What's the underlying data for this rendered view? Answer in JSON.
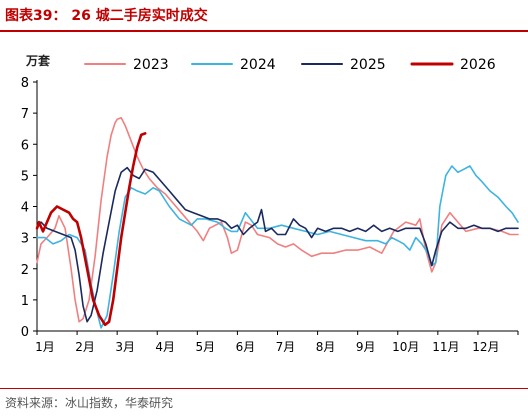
{
  "figure": {
    "title": "图表39：  26 城二手房实时成交",
    "source": "资料来源：冰山指数，华泰研究",
    "title_color": "#c00000"
  },
  "chart_data": {
    "type": "line",
    "ylabel": "万套",
    "ylim": [
      0,
      8
    ],
    "yticks": [
      0,
      1,
      2,
      3,
      4,
      5,
      6,
      7,
      8
    ],
    "xlim": [
      0,
      12
    ],
    "xticks": [
      "1月",
      "2月",
      "3月",
      "4月",
      "5月",
      "6月",
      "7月",
      "8月",
      "9月",
      "10月",
      "11月",
      "12月"
    ],
    "legend": "top",
    "grid": false,
    "series": [
      {
        "name": "2023",
        "color": "#f08080",
        "width": 1.6,
        "points": [
          [
            0,
            2.2
          ],
          [
            0.1,
            2.8
          ],
          [
            0.25,
            3.0
          ],
          [
            0.45,
            3.3
          ],
          [
            0.55,
            3.7
          ],
          [
            0.7,
            3.3
          ],
          [
            0.85,
            2.0
          ],
          [
            0.95,
            1.0
          ],
          [
            1.05,
            0.3
          ],
          [
            1.15,
            0.4
          ],
          [
            1.3,
            1.0
          ],
          [
            1.45,
            2.4
          ],
          [
            1.6,
            4.2
          ],
          [
            1.75,
            5.6
          ],
          [
            1.85,
            6.3
          ],
          [
            1.95,
            6.7
          ],
          [
            2.0,
            6.8
          ],
          [
            2.1,
            6.85
          ],
          [
            2.2,
            6.6
          ],
          [
            2.35,
            6.1
          ],
          [
            2.5,
            5.6
          ],
          [
            2.65,
            5.2
          ],
          [
            2.8,
            4.9
          ],
          [
            3.0,
            4.6
          ],
          [
            3.2,
            4.4
          ],
          [
            3.4,
            4.1
          ],
          [
            3.6,
            3.8
          ],
          [
            3.8,
            3.5
          ],
          [
            4.0,
            3.2
          ],
          [
            4.15,
            2.9
          ],
          [
            4.3,
            3.3
          ],
          [
            4.6,
            3.5
          ],
          [
            4.75,
            3.0
          ],
          [
            4.85,
            2.5
          ],
          [
            5.0,
            2.6
          ],
          [
            5.2,
            3.5
          ],
          [
            5.35,
            3.4
          ],
          [
            5.5,
            3.1
          ],
          [
            5.8,
            3.0
          ],
          [
            6.0,
            2.8
          ],
          [
            6.2,
            2.7
          ],
          [
            6.4,
            2.8
          ],
          [
            6.6,
            2.6
          ],
          [
            6.85,
            2.4
          ],
          [
            7.1,
            2.5
          ],
          [
            7.4,
            2.5
          ],
          [
            7.7,
            2.6
          ],
          [
            8.0,
            2.6
          ],
          [
            8.3,
            2.7
          ],
          [
            8.6,
            2.5
          ],
          [
            8.9,
            3.2
          ],
          [
            9.2,
            3.5
          ],
          [
            9.45,
            3.4
          ],
          [
            9.55,
            3.6
          ],
          [
            9.7,
            2.6
          ],
          [
            9.85,
            1.9
          ],
          [
            9.95,
            2.2
          ],
          [
            10.1,
            3.4
          ],
          [
            10.3,
            3.8
          ],
          [
            10.5,
            3.5
          ],
          [
            10.7,
            3.2
          ],
          [
            11.0,
            3.3
          ],
          [
            11.3,
            3.3
          ],
          [
            11.6,
            3.2
          ],
          [
            11.8,
            3.1
          ],
          [
            12.0,
            3.1
          ]
        ]
      },
      {
        "name": "2024",
        "color": "#3fb3e0",
        "width": 1.6,
        "points": [
          [
            0,
            3.0
          ],
          [
            0.2,
            3.0
          ],
          [
            0.4,
            2.8
          ],
          [
            0.6,
            2.9
          ],
          [
            0.8,
            3.1
          ],
          [
            1.0,
            3.0
          ],
          [
            1.2,
            2.6
          ],
          [
            1.35,
            1.5
          ],
          [
            1.5,
            0.6
          ],
          [
            1.6,
            0.1
          ],
          [
            1.75,
            0.5
          ],
          [
            1.9,
            1.8
          ],
          [
            2.05,
            3.2
          ],
          [
            2.2,
            4.3
          ],
          [
            2.35,
            4.6
          ],
          [
            2.5,
            4.5
          ],
          [
            2.7,
            4.4
          ],
          [
            2.9,
            4.6
          ],
          [
            3.05,
            4.5
          ],
          [
            3.3,
            4.0
          ],
          [
            3.55,
            3.6
          ],
          [
            3.7,
            3.5
          ],
          [
            3.85,
            3.4
          ],
          [
            4.0,
            3.6
          ],
          [
            4.2,
            3.6
          ],
          [
            4.5,
            3.5
          ],
          [
            4.7,
            3.3
          ],
          [
            4.85,
            3.2
          ],
          [
            5.0,
            3.2
          ],
          [
            5.2,
            3.8
          ],
          [
            5.5,
            3.3
          ],
          [
            5.8,
            3.3
          ],
          [
            6.1,
            3.4
          ],
          [
            6.4,
            3.3
          ],
          [
            6.7,
            3.2
          ],
          [
            7.0,
            3.1
          ],
          [
            7.3,
            3.2
          ],
          [
            7.6,
            3.1
          ],
          [
            7.9,
            3.0
          ],
          [
            8.2,
            2.9
          ],
          [
            8.5,
            2.9
          ],
          [
            8.7,
            2.8
          ],
          [
            8.85,
            3.0
          ],
          [
            9.0,
            2.9
          ],
          [
            9.15,
            2.8
          ],
          [
            9.3,
            2.6
          ],
          [
            9.45,
            3.0
          ],
          [
            9.6,
            2.8
          ],
          [
            9.75,
            2.5
          ],
          [
            9.85,
            2.1
          ],
          [
            9.95,
            2.2
          ],
          [
            10.05,
            4.0
          ],
          [
            10.2,
            5.0
          ],
          [
            10.35,
            5.3
          ],
          [
            10.5,
            5.1
          ],
          [
            10.65,
            5.2
          ],
          [
            10.8,
            5.3
          ],
          [
            10.95,
            5.0
          ],
          [
            11.1,
            4.8
          ],
          [
            11.3,
            4.5
          ],
          [
            11.5,
            4.3
          ],
          [
            11.7,
            4.0
          ],
          [
            11.85,
            3.8
          ],
          [
            12.0,
            3.5
          ]
        ]
      },
      {
        "name": "2025",
        "color": "#1a2a5e",
        "width": 1.6,
        "points": [
          [
            0,
            3.3
          ],
          [
            0.1,
            3.5
          ],
          [
            0.25,
            3.3
          ],
          [
            0.45,
            3.2
          ],
          [
            0.65,
            3.1
          ],
          [
            0.85,
            3.0
          ],
          [
            0.95,
            2.6
          ],
          [
            1.05,
            1.8
          ],
          [
            1.15,
            0.8
          ],
          [
            1.25,
            0.3
          ],
          [
            1.35,
            0.5
          ],
          [
            1.5,
            1.3
          ],
          [
            1.65,
            2.5
          ],
          [
            1.8,
            3.5
          ],
          [
            1.95,
            4.5
          ],
          [
            2.1,
            5.1
          ],
          [
            2.25,
            5.25
          ],
          [
            2.4,
            5.0
          ],
          [
            2.55,
            4.9
          ],
          [
            2.7,
            5.2
          ],
          [
            2.9,
            5.1
          ],
          [
            3.1,
            4.8
          ],
          [
            3.3,
            4.5
          ],
          [
            3.5,
            4.2
          ],
          [
            3.7,
            3.9
          ],
          [
            3.9,
            3.8
          ],
          [
            4.1,
            3.7
          ],
          [
            4.3,
            3.6
          ],
          [
            4.5,
            3.6
          ],
          [
            4.7,
            3.5
          ],
          [
            4.85,
            3.3
          ],
          [
            5.0,
            3.4
          ],
          [
            5.15,
            3.1
          ],
          [
            5.3,
            3.3
          ],
          [
            5.5,
            3.5
          ],
          [
            5.6,
            3.9
          ],
          [
            5.7,
            3.2
          ],
          [
            5.85,
            3.3
          ],
          [
            6.0,
            3.1
          ],
          [
            6.2,
            3.1
          ],
          [
            6.4,
            3.6
          ],
          [
            6.55,
            3.4
          ],
          [
            6.7,
            3.3
          ],
          [
            6.85,
            3.0
          ],
          [
            7.0,
            3.3
          ],
          [
            7.2,
            3.2
          ],
          [
            7.4,
            3.3
          ],
          [
            7.6,
            3.3
          ],
          [
            7.8,
            3.2
          ],
          [
            8.0,
            3.3
          ],
          [
            8.2,
            3.2
          ],
          [
            8.4,
            3.4
          ],
          [
            8.6,
            3.2
          ],
          [
            8.8,
            3.3
          ],
          [
            9.0,
            3.2
          ],
          [
            9.2,
            3.3
          ],
          [
            9.4,
            3.3
          ],
          [
            9.55,
            3.3
          ],
          [
            9.7,
            2.8
          ],
          [
            9.85,
            2.1
          ],
          [
            9.95,
            2.6
          ],
          [
            10.1,
            3.2
          ],
          [
            10.3,
            3.5
          ],
          [
            10.5,
            3.3
          ],
          [
            10.7,
            3.3
          ],
          [
            10.9,
            3.4
          ],
          [
            11.1,
            3.3
          ],
          [
            11.3,
            3.3
          ],
          [
            11.5,
            3.2
          ],
          [
            11.7,
            3.3
          ],
          [
            11.85,
            3.3
          ],
          [
            12.0,
            3.3
          ]
        ]
      },
      {
        "name": "2026",
        "color": "#c00000",
        "width": 2.6,
        "points": [
          [
            0,
            3.3
          ],
          [
            0.05,
            3.5
          ],
          [
            0.15,
            3.2
          ],
          [
            0.25,
            3.5
          ],
          [
            0.35,
            3.8
          ],
          [
            0.5,
            4.0
          ],
          [
            0.65,
            3.9
          ],
          [
            0.8,
            3.8
          ],
          [
            0.9,
            3.6
          ],
          [
            1.0,
            3.5
          ],
          [
            1.1,
            3.0
          ],
          [
            1.25,
            2.0
          ],
          [
            1.4,
            1.0
          ],
          [
            1.55,
            0.5
          ],
          [
            1.7,
            0.2
          ],
          [
            1.8,
            0.3
          ],
          [
            1.9,
            1.0
          ],
          [
            2.0,
            2.0
          ],
          [
            2.1,
            3.0
          ],
          [
            2.2,
            3.8
          ],
          [
            2.3,
            4.6
          ],
          [
            2.4,
            5.3
          ],
          [
            2.5,
            5.9
          ],
          [
            2.6,
            6.3
          ],
          [
            2.7,
            6.35
          ]
        ]
      }
    ]
  }
}
